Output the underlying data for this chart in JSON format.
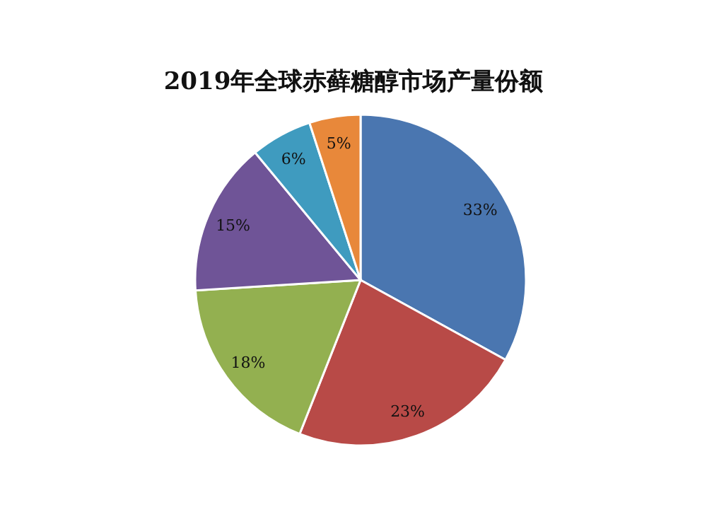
{
  "chart_data": {
    "type": "pie",
    "title": "2019年全球赤藓糖醇市场产量份额",
    "categories": [
      null,
      null,
      null,
      null,
      null,
      null
    ],
    "values": [
      33,
      23,
      18,
      15,
      6,
      5
    ],
    "colors": [
      "#4a76b0",
      "#b84a47",
      "#93b050",
      "#6f5497",
      "#3f9bbf",
      "#e8883a"
    ],
    "value_labels": [
      "33%",
      "23%",
      "18%",
      "15%",
      "6%",
      "5%"
    ]
  }
}
